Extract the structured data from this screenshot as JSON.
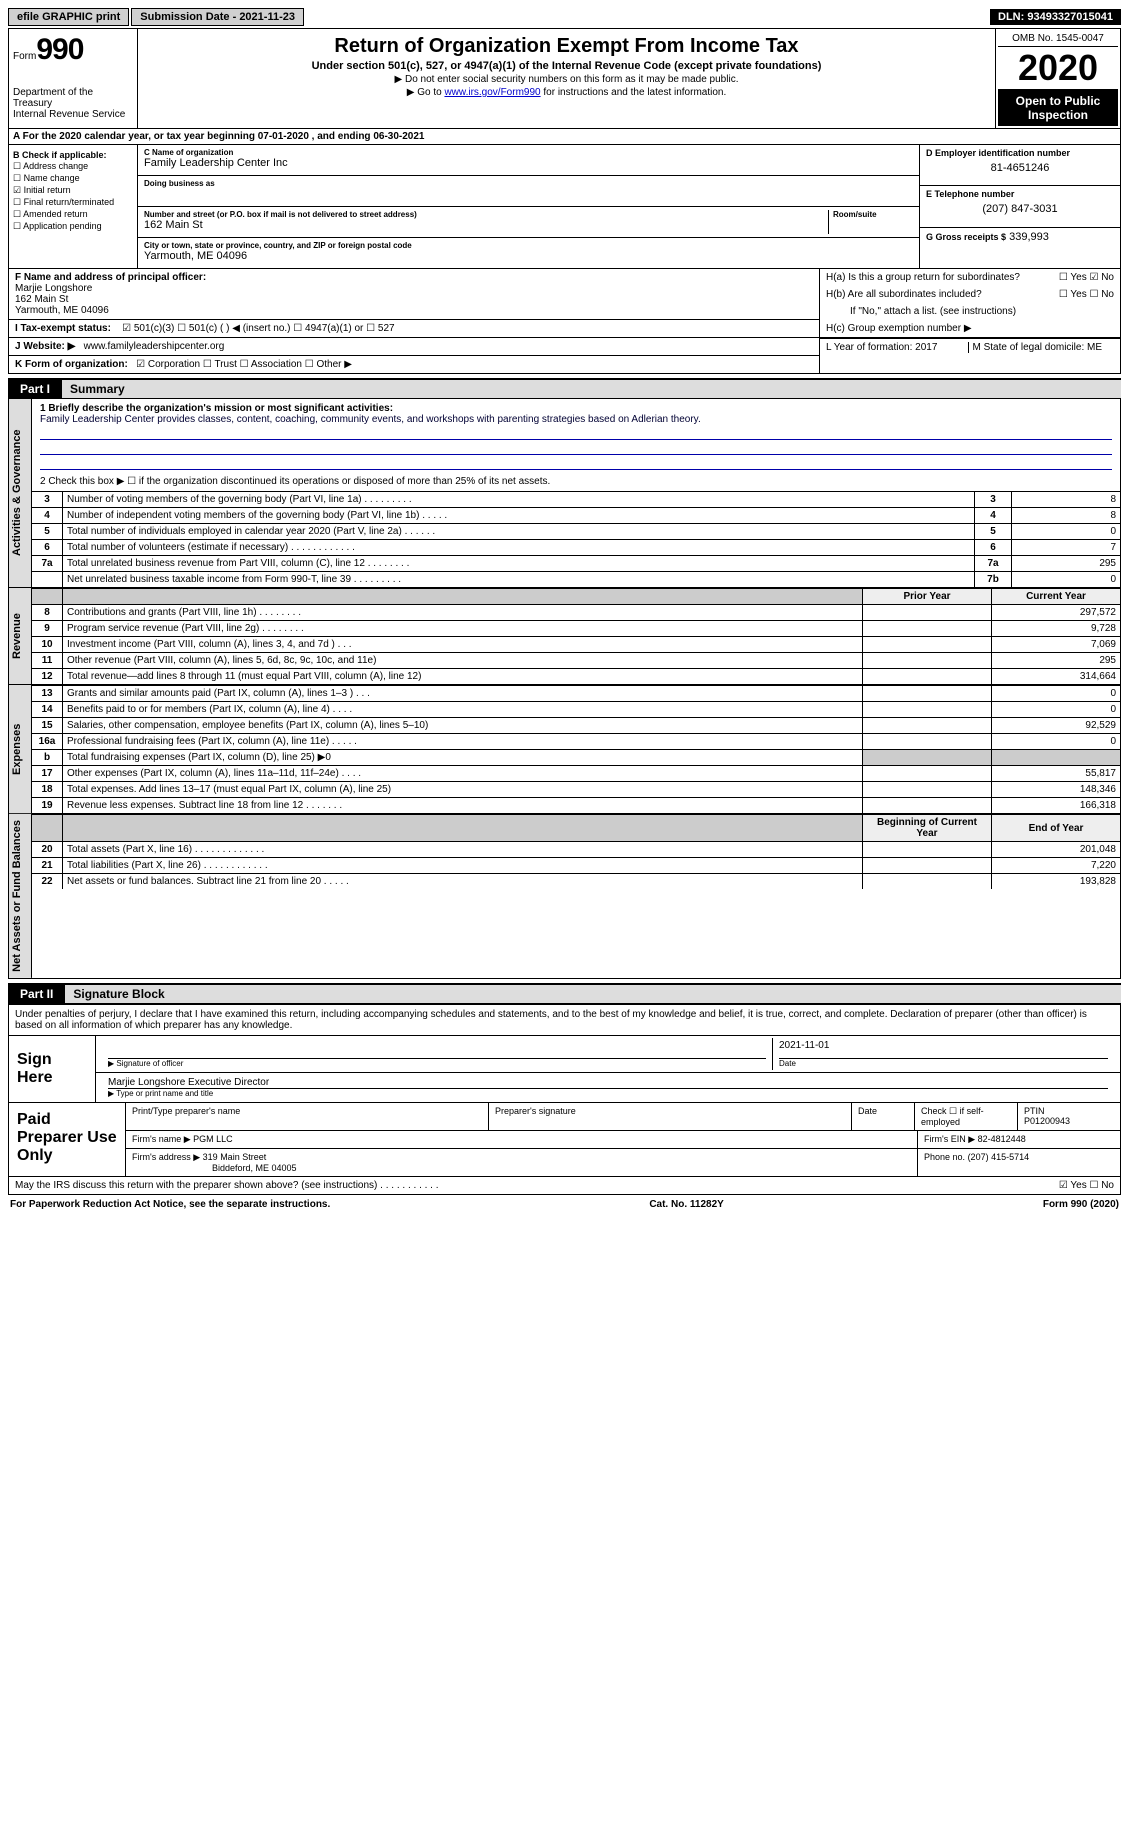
{
  "topbar": {
    "efile": "efile GRAPHIC print",
    "submission": "Submission Date - 2021-11-23",
    "dln": "DLN: 93493327015041"
  },
  "header": {
    "form_label": "Form",
    "form_num": "990",
    "dept": "Department of the Treasury\nInternal Revenue Service",
    "title": "Return of Organization Exempt From Income Tax",
    "subtitle": "Under section 501(c), 527, or 4947(a)(1) of the Internal Revenue Code (except private foundations)",
    "instr1": "▶ Do not enter social security numbers on this form as it may be made public.",
    "instr2_pre": "▶ Go to ",
    "instr2_link": "www.irs.gov/Form990",
    "instr2_post": " for instructions and the latest information.",
    "omb": "OMB No. 1545-0047",
    "year": "2020",
    "open": "Open to Public Inspection"
  },
  "line_a": "A For the 2020 calendar year, or tax year beginning 07-01-2020   , and ending 06-30-2021",
  "col_b": {
    "header": "B Check if applicable:",
    "items": [
      {
        "label": "Address change",
        "checked": false
      },
      {
        "label": "Name change",
        "checked": false
      },
      {
        "label": "Initial return",
        "checked": true
      },
      {
        "label": "Final return/terminated",
        "checked": false
      },
      {
        "label": "Amended return",
        "checked": false
      },
      {
        "label": "Application pending",
        "checked": false
      }
    ]
  },
  "col_c": {
    "name_lbl": "C Name of organization",
    "name": "Family Leadership Center Inc",
    "dba_lbl": "Doing business as",
    "dba": "",
    "street_lbl": "Number and street (or P.O. box if mail is not delivered to street address)",
    "street": "162 Main St",
    "room_lbl": "Room/suite",
    "room": "",
    "city_lbl": "City or town, state or province, country, and ZIP or foreign postal code",
    "city": "Yarmouth, ME  04096"
  },
  "col_d": {
    "ein_lbl": "D Employer identification number",
    "ein": "81-4651246",
    "phone_lbl": "E Telephone number",
    "phone": "(207) 847-3031",
    "gross_lbl": "G Gross receipts $",
    "gross": "339,993"
  },
  "block_f": {
    "f_lbl": "F Name and address of principal officer:",
    "f_name": "Marjie Longshore",
    "f_addr1": "162 Main St",
    "f_addr2": "Yarmouth, ME  04096",
    "i_lbl": "I   Tax-exempt status:",
    "i_opts": "☑ 501(c)(3)    ☐ 501(c) (  ) ◀ (insert no.)    ☐ 4947(a)(1) or  ☐ 527",
    "j_lbl": "J   Website: ▶",
    "j_val": "www.familyleadershipcenter.org",
    "k_lbl": "K Form of organization:",
    "k_opts": "☑ Corporation  ☐ Trust  ☐ Association  ☐ Other ▶"
  },
  "block_h": {
    "ha": "H(a)  Is this a group return for subordinates?",
    "ha_ans": "☐ Yes  ☑ No",
    "hb": "H(b)  Are all subordinates included?",
    "hb_ans": "☐ Yes  ☐ No",
    "hb_note": "If \"No,\" attach a list. (see instructions)",
    "hc": "H(c)  Group exemption number ▶",
    "l": "L Year of formation: 2017",
    "m": "M State of legal domicile: ME"
  },
  "part1": {
    "tab": "Part I",
    "title": "Summary",
    "mission_lbl": "1  Briefly describe the organization's mission or most significant activities:",
    "mission": "Family Leadership Center provides classes, content, coaching, community events, and workshops with parenting strategies based on Adlerian theory.",
    "line2": "2   Check this box ▶ ☐  if the organization discontinued its operations or disposed of more than 25% of its net assets.",
    "governance": [
      {
        "n": "3",
        "d": "Number of voting members of the governing body (Part VI, line 1a)   .    .    .    .    .    .    .    .    .",
        "b": "3",
        "v": "8"
      },
      {
        "n": "4",
        "d": "Number of independent voting members of the governing body (Part VI, line 1b)   .    .    .    .    .",
        "b": "4",
        "v": "8"
      },
      {
        "n": "5",
        "d": "Total number of individuals employed in calendar year 2020 (Part V, line 2a)   .    .    .    .    .    .",
        "b": "5",
        "v": "0"
      },
      {
        "n": "6",
        "d": "Total number of volunteers (estimate if necessary)   .    .    .    .    .    .    .    .    .    .    .    .",
        "b": "6",
        "v": "7"
      },
      {
        "n": "7a",
        "d": "Total unrelated business revenue from Part VIII, column (C), line 12   .    .    .    .    .    .    .    .",
        "b": "7a",
        "v": "295"
      },
      {
        "n": "",
        "d": "Net unrelated business taxable income from Form 990-T, line 39   .    .    .    .    .    .    .    .    .",
        "b": "7b",
        "v": "0"
      }
    ],
    "cols": {
      "prior": "Prior Year",
      "current": "Current Year"
    },
    "revenue": [
      {
        "n": "8",
        "d": "Contributions and grants (Part VIII, line 1h)   .    .    .    .    .    .    .    .",
        "p": "",
        "c": "297,572"
      },
      {
        "n": "9",
        "d": "Program service revenue (Part VIII, line 2g)    .    .    .    .    .    .    .    .",
        "p": "",
        "c": "9,728"
      },
      {
        "n": "10",
        "d": "Investment income (Part VIII, column (A), lines 3, 4, and 7d )    .    .    .",
        "p": "",
        "c": "7,069"
      },
      {
        "n": "11",
        "d": "Other revenue (Part VIII, column (A), lines 5, 6d, 8c, 9c, 10c, and 11e)",
        "p": "",
        "c": "295"
      },
      {
        "n": "12",
        "d": "Total revenue—add lines 8 through 11 (must equal Part VIII, column (A), line 12)",
        "p": "",
        "c": "314,664"
      }
    ],
    "expenses": [
      {
        "n": "13",
        "d": "Grants and similar amounts paid (Part IX, column (A), lines 1–3 )   .    .    .",
        "p": "",
        "c": "0"
      },
      {
        "n": "14",
        "d": "Benefits paid to or for members (Part IX, column (A), line 4)   .    .    .    .",
        "p": "",
        "c": "0"
      },
      {
        "n": "15",
        "d": "Salaries, other compensation, employee benefits (Part IX, column (A), lines 5–10)",
        "p": "",
        "c": "92,529"
      },
      {
        "n": "16a",
        "d": "Professional fundraising fees (Part IX, column (A), line 11e)   .    .    .    .    .",
        "p": "",
        "c": "0"
      },
      {
        "n": "b",
        "d": "Total fundraising expenses (Part IX, column (D), line 25) ▶0",
        "p": "GREY",
        "c": "GREY"
      },
      {
        "n": "17",
        "d": "Other expenses (Part IX, column (A), lines 11a–11d, 11f–24e)    .    .    .    .",
        "p": "",
        "c": "55,817"
      },
      {
        "n": "18",
        "d": "Total expenses. Add lines 13–17 (must equal Part IX, column (A), line 25)",
        "p": "",
        "c": "148,346"
      },
      {
        "n": "19",
        "d": "Revenue less expenses. Subtract line 18 from line 12   .    .    .    .    .    .    .",
        "p": "",
        "c": "166,318"
      }
    ],
    "netcols": {
      "beg": "Beginning of Current Year",
      "end": "End of Year"
    },
    "net": [
      {
        "n": "20",
        "d": "Total assets (Part X, line 16)   .    .    .    .    .    .    .    .    .    .    .    .    .",
        "p": "",
        "c": "201,048"
      },
      {
        "n": "21",
        "d": "Total liabilities (Part X, line 26)   .    .    .    .    .    .    .    .    .    .    .    .",
        "p": "",
        "c": "7,220"
      },
      {
        "n": "22",
        "d": "Net assets or fund balances. Subtract line 21 from line 20   .    .    .    .    .",
        "p": "",
        "c": "193,828"
      }
    ],
    "vtabs": {
      "gov": "Activities & Governance",
      "rev": "Revenue",
      "exp": "Expenses",
      "net": "Net Assets or Fund Balances"
    }
  },
  "part2": {
    "tab": "Part II",
    "title": "Signature Block",
    "decl": "Under penalties of perjury, I declare that I have examined this return, including accompanying schedules and statements, and to the best of my knowledge and belief, it is true, correct, and complete. Declaration of preparer (other than officer) is based on all information of which preparer has any knowledge.",
    "sign_here": "Sign Here",
    "sig_officer": "Signature of officer",
    "sig_date_lbl": "Date",
    "sig_date": "2021-11-01",
    "sig_name": "Marjie Longshore  Executive Director",
    "sig_type": "Type or print name and title",
    "paid": "Paid Preparer Use Only",
    "prep_name_lbl": "Print/Type preparer's name",
    "prep_sig_lbl": "Preparer's signature",
    "prep_date_lbl": "Date",
    "prep_check": "Check ☐ if self-employed",
    "ptin_lbl": "PTIN",
    "ptin": "P01200943",
    "firm_name_lbl": "Firm's name    ▶",
    "firm_name": "PGM LLC",
    "firm_ein_lbl": "Firm's EIN ▶",
    "firm_ein": "82-4812448",
    "firm_addr_lbl": "Firm's address ▶",
    "firm_addr": "319 Main Street",
    "firm_addr2": "Biddeford, ME  04005",
    "phone_lbl": "Phone no.",
    "phone": "(207) 415-5714",
    "discuss": "May the IRS discuss this return with the preparer shown above? (see instructions)   .    .    .    .    .    .    .    .    .    .    .",
    "discuss_ans": "☑ Yes   ☐ No"
  },
  "footer": {
    "left": "For Paperwork Reduction Act Notice, see the separate instructions.",
    "mid": "Cat. No. 11282Y",
    "right": "Form 990 (2020)"
  }
}
